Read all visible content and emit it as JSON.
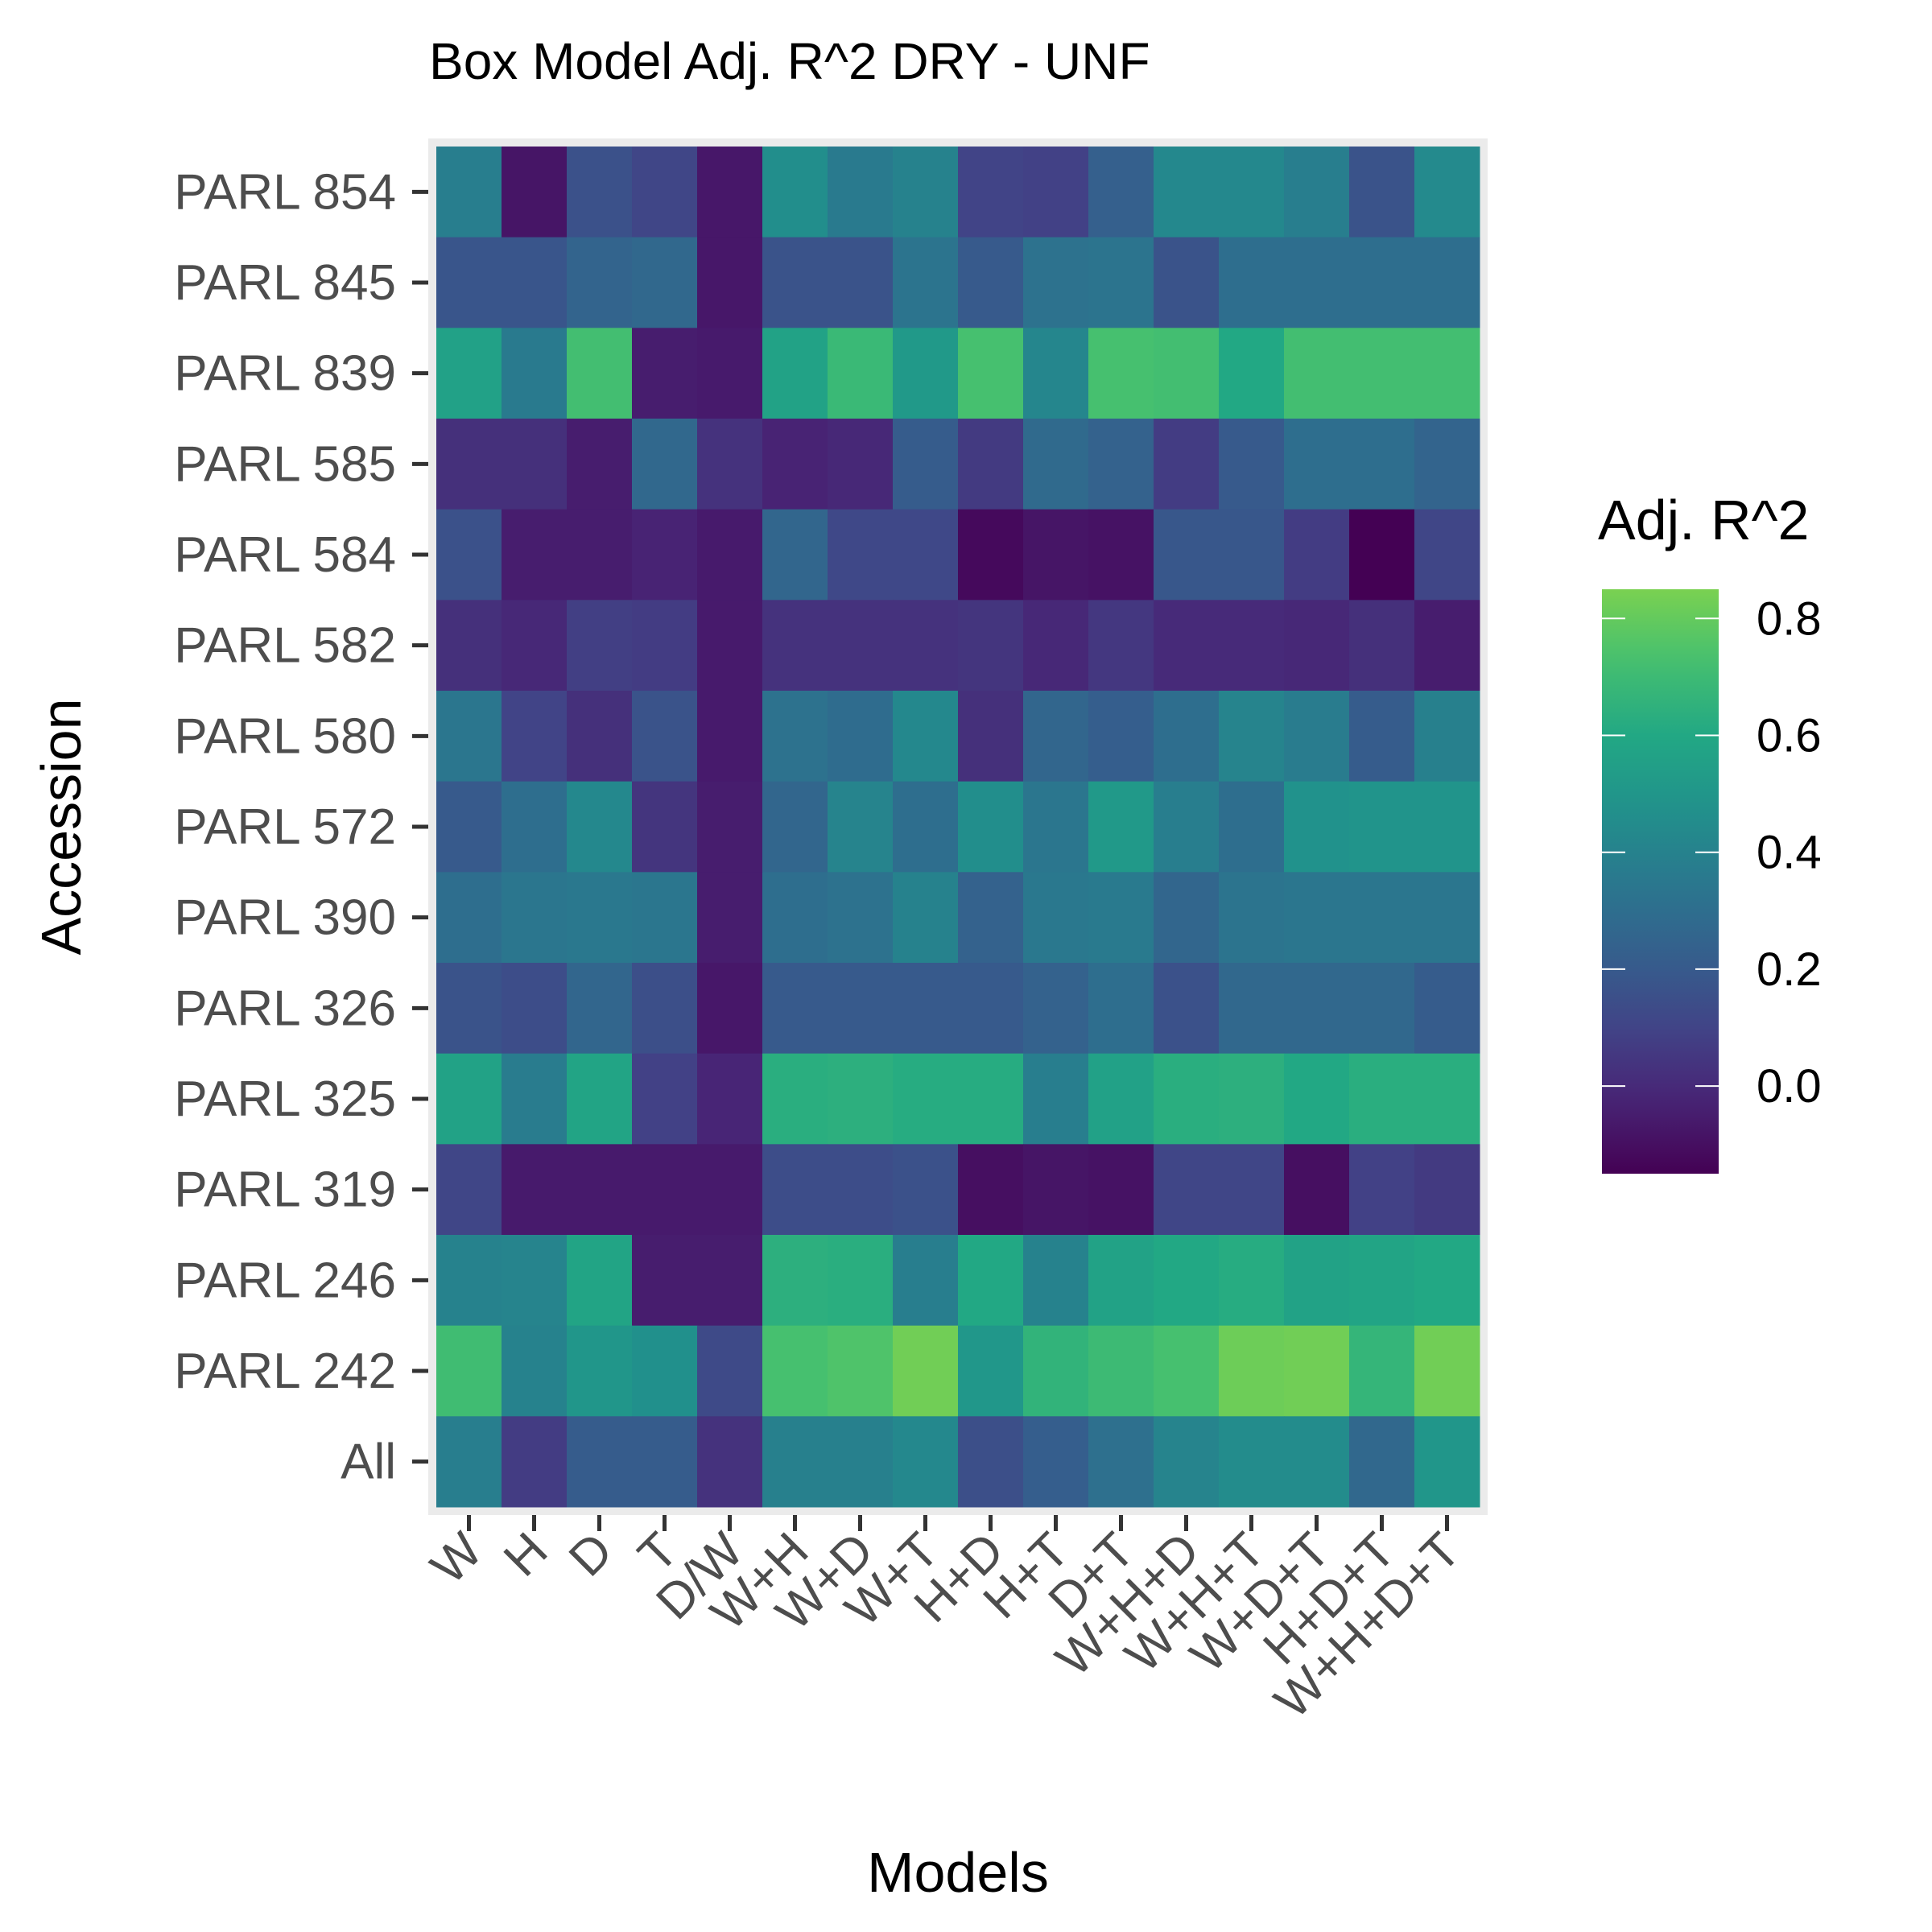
{
  "chart_data": {
    "type": "heatmap",
    "title": "Box Model Adj. R^2 DRY - UNF",
    "xlabel": "Models",
    "ylabel": "Accession",
    "x_categories": [
      "W",
      "H",
      "D",
      "T",
      "D/W",
      "W+H",
      "W+D",
      "W+T",
      "H+D",
      "H+T",
      "D+T",
      "W+H+D",
      "W+H+T",
      "W+D+T",
      "H+D+T",
      "W+H+D+T"
    ],
    "y_categories": [
      "PARL 854",
      "PARL 845",
      "PARL 839",
      "PARL 585",
      "PARL 584",
      "PARL 582",
      "PARL 580",
      "PARL 572",
      "PARL 390",
      "PARL 326",
      "PARL 325",
      "PARL 319",
      "PARL 246",
      "PARL 242",
      "All"
    ],
    "values": [
      [
        0.38,
        -0.08,
        0.16,
        0.11,
        -0.07,
        0.46,
        0.36,
        0.4,
        0.1,
        0.09,
        0.23,
        0.43,
        0.43,
        0.38,
        0.17,
        0.44
      ],
      [
        0.18,
        0.18,
        0.25,
        0.27,
        -0.07,
        0.17,
        0.17,
        0.33,
        0.2,
        0.32,
        0.33,
        0.17,
        0.3,
        0.3,
        0.3,
        0.3
      ],
      [
        0.56,
        0.36,
        0.72,
        -0.05,
        -0.06,
        0.57,
        0.69,
        0.52,
        0.73,
        0.42,
        0.73,
        0.72,
        0.6,
        0.72,
        0.72,
        0.72
      ],
      [
        0.02,
        0.02,
        -0.05,
        0.27,
        0.03,
        -0.03,
        -0.01,
        0.21,
        0.06,
        0.28,
        0.24,
        0.07,
        0.2,
        0.3,
        0.3,
        0.25
      ],
      [
        0.16,
        -0.05,
        -0.05,
        -0.03,
        -0.06,
        0.26,
        0.12,
        0.12,
        -0.12,
        -0.08,
        -0.09,
        0.19,
        0.19,
        0.07,
        -0.15,
        0.11
      ],
      [
        0.02,
        -0.01,
        0.08,
        0.07,
        -0.06,
        0.03,
        0.03,
        0.03,
        0.04,
        -0.01,
        0.05,
        0.0,
        0.0,
        -0.01,
        0.02,
        -0.05
      ],
      [
        0.34,
        0.1,
        0.02,
        0.17,
        -0.06,
        0.32,
        0.29,
        0.43,
        0.02,
        0.26,
        0.22,
        0.3,
        0.41,
        0.37,
        0.21,
        0.39
      ],
      [
        0.2,
        0.3,
        0.43,
        0.04,
        -0.05,
        0.26,
        0.41,
        0.3,
        0.46,
        0.34,
        0.52,
        0.38,
        0.3,
        0.48,
        0.49,
        0.49
      ],
      [
        0.3,
        0.34,
        0.35,
        0.34,
        -0.05,
        0.3,
        0.32,
        0.4,
        0.24,
        0.35,
        0.36,
        0.26,
        0.33,
        0.34,
        0.34,
        0.34
      ],
      [
        0.17,
        0.14,
        0.26,
        0.15,
        -0.07,
        0.2,
        0.2,
        0.2,
        0.2,
        0.24,
        0.3,
        0.16,
        0.27,
        0.27,
        0.27,
        0.21
      ],
      [
        0.57,
        0.37,
        0.58,
        0.09,
        -0.02,
        0.63,
        0.64,
        0.62,
        0.62,
        0.38,
        0.56,
        0.63,
        0.64,
        0.6,
        0.63,
        0.63
      ],
      [
        0.11,
        -0.06,
        -0.06,
        -0.06,
        -0.06,
        0.14,
        0.14,
        0.16,
        -0.1,
        -0.08,
        -0.09,
        0.11,
        0.11,
        -0.1,
        0.09,
        0.06
      ],
      [
        0.4,
        0.41,
        0.58,
        -0.05,
        -0.05,
        0.64,
        0.63,
        0.38,
        0.6,
        0.4,
        0.57,
        0.6,
        0.62,
        0.57,
        0.58,
        0.6
      ],
      [
        0.71,
        0.4,
        0.5,
        0.47,
        0.13,
        0.73,
        0.75,
        0.83,
        0.51,
        0.66,
        0.7,
        0.73,
        0.82,
        0.83,
        0.67,
        0.83
      ],
      [
        0.38,
        0.07,
        0.21,
        0.21,
        0.03,
        0.39,
        0.39,
        0.43,
        0.15,
        0.22,
        0.31,
        0.41,
        0.45,
        0.45,
        0.27,
        0.5
      ]
    ],
    "color_scale": {
      "name": "viridis",
      "limits": [
        -0.15,
        0.85
      ],
      "low_color": "#440154",
      "high_color": "#7ad151"
    },
    "legend": {
      "title": "Adj. R^2",
      "breaks": [
        0.0,
        0.2,
        0.4,
        0.6,
        0.8
      ],
      "break_labels": [
        "0.0",
        "0.2",
        "0.4",
        "0.6",
        "0.8"
      ],
      "position": "right"
    },
    "grid": true
  }
}
